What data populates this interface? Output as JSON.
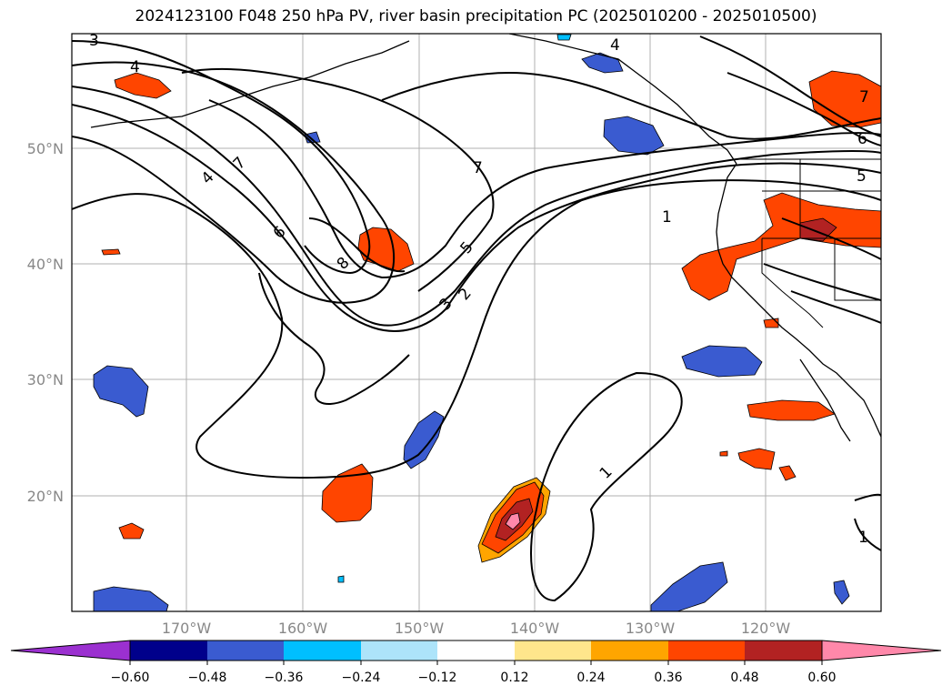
{
  "title": "2024123100 F048 250 hPa PV, river basin precipitation PC (2025010200 - 2025010500)",
  "lat_labels": [
    "50°N",
    "40°N",
    "30°N",
    "20°N"
  ],
  "lon_labels": [
    "170°W",
    "160°W",
    "150°W",
    "140°W",
    "130°W",
    "120°W"
  ],
  "pv_contour_labels": [
    "3",
    "4",
    "7",
    "4",
    "7",
    "6",
    "8",
    "5",
    "3",
    "2",
    "1",
    "1",
    "6",
    "5",
    "7",
    "1",
    "4"
  ],
  "colorbar": {
    "ticks": [
      "−0.60",
      "−0.48",
      "−0.36",
      "−0.24",
      "−0.12",
      "0.12",
      "0.24",
      "0.36",
      "0.48",
      "0.60"
    ],
    "colors": [
      "#9b30d0",
      "#00008b",
      "#3a5bd0",
      "#00bfff",
      "#ade4fa",
      "#ffffff",
      "#ffe68c",
      "#ffa500",
      "#ff4500",
      "#b22222",
      "#ff88aa"
    ]
  }
}
